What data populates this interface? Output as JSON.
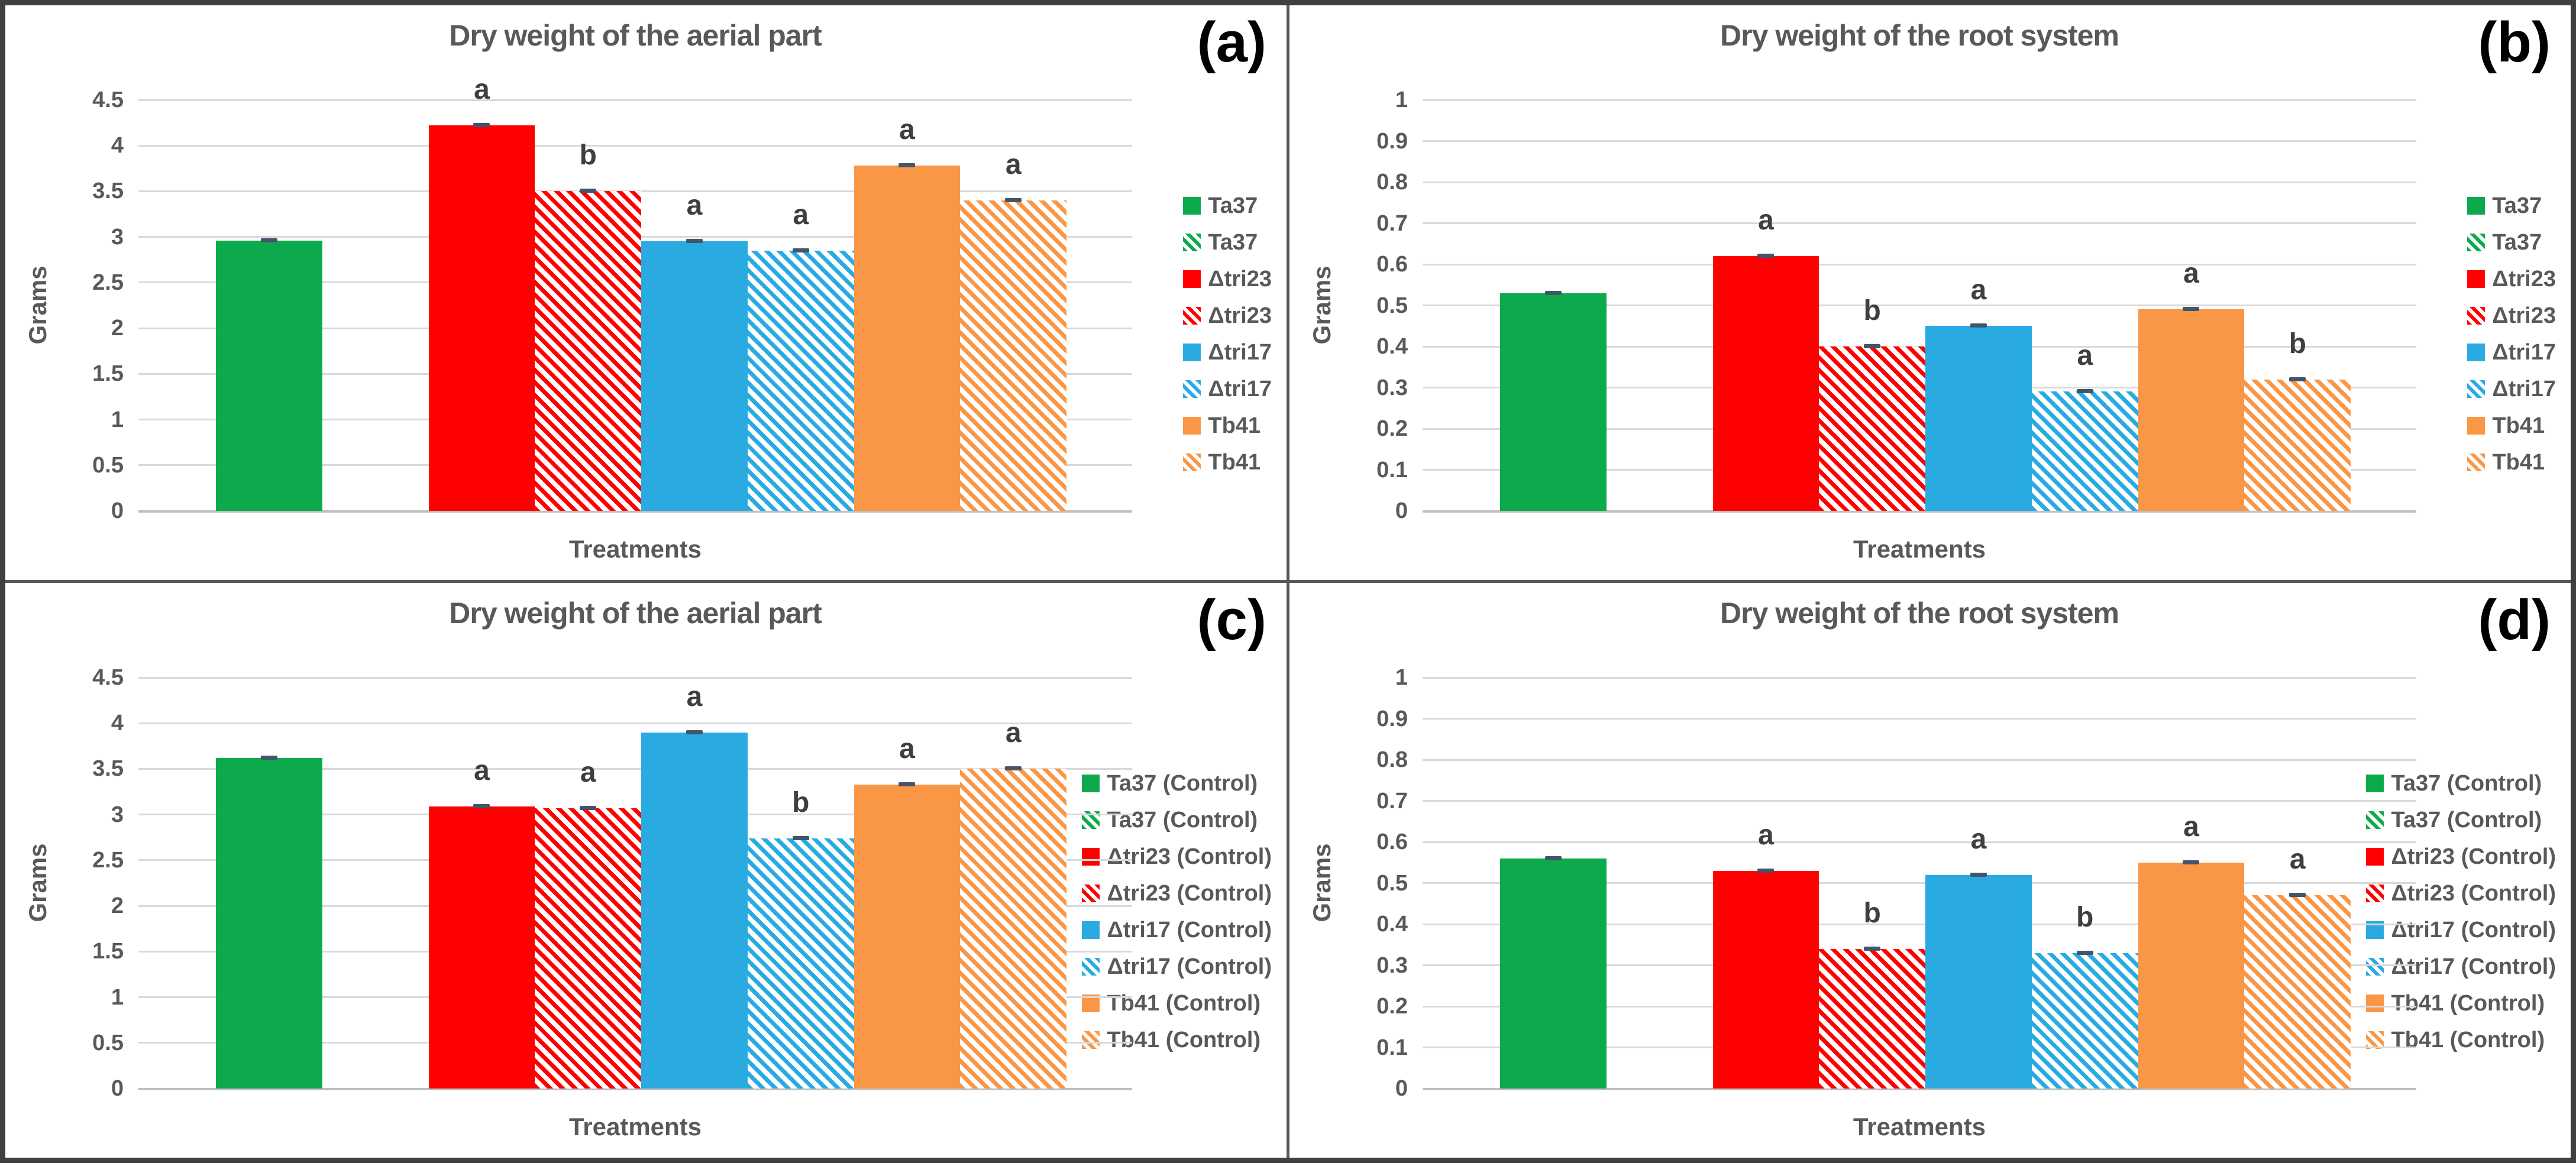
{
  "figure": {
    "background": "#ffffff",
    "border_color": "#3f3f3f",
    "divider_color": "#595959",
    "text_color": "#595959",
    "letter_color": "#3f3f3f",
    "gridline_color": "#d9d9d9",
    "baseline_color": "#bfbfbf",
    "error_bar_color": "#44546a",
    "palette": {
      "green": "#0ca94d",
      "red": "#fe0000",
      "blue": "#29abe2",
      "orange": "#f99746"
    }
  },
  "chart_data": [
    {
      "type": "bar",
      "panel_label": "(a)",
      "title": "Dry weight of the aerial part",
      "ylabel": "Grams",
      "xlabel": "Treatments",
      "ylim": [
        0,
        4.5
      ],
      "ytick_step": 0.5,
      "grid": true,
      "legend_position": "right",
      "legend": [
        {
          "label": "Ta37",
          "color": "green",
          "hatch": false
        },
        {
          "label": "Ta37",
          "color": "green",
          "hatch": true
        },
        {
          "label": "Δtri23",
          "color": "red",
          "hatch": false
        },
        {
          "label": "Δtri23",
          "color": "red",
          "hatch": true
        },
        {
          "label": "Δtri17",
          "color": "blue",
          "hatch": false
        },
        {
          "label": "Δtri17",
          "color": "blue",
          "hatch": true
        },
        {
          "label": "Tb41",
          "color": "orange",
          "hatch": false
        },
        {
          "label": "Tb41",
          "color": "orange",
          "hatch": true
        }
      ],
      "bars": [
        {
          "name": "Ta37",
          "slot": 0,
          "value": 2.96,
          "color": "green",
          "hatch": false,
          "letter": ""
        },
        {
          "name": "Δtri23",
          "slot": 2,
          "value": 4.22,
          "color": "red",
          "hatch": false,
          "letter": "a"
        },
        {
          "name": "Δtri23",
          "slot": 3,
          "value": 3.5,
          "color": "red",
          "hatch": true,
          "letter": "b"
        },
        {
          "name": "Δtri17",
          "slot": 4,
          "value": 2.95,
          "color": "blue",
          "hatch": false,
          "letter": "a"
        },
        {
          "name": "Δtri17",
          "slot": 5,
          "value": 2.85,
          "color": "blue",
          "hatch": true,
          "letter": "a"
        },
        {
          "name": "Tb41",
          "slot": 6,
          "value": 3.78,
          "color": "orange",
          "hatch": false,
          "letter": "a"
        },
        {
          "name": "Tb41",
          "slot": 7,
          "value": 3.4,
          "color": "orange",
          "hatch": true,
          "letter": "a"
        }
      ]
    },
    {
      "type": "bar",
      "panel_label": "(b)",
      "title": "Dry weight of the root system",
      "ylabel": "Grams",
      "xlabel": "Treatments",
      "ylim": [
        0,
        1
      ],
      "ytick_step": 0.1,
      "grid": true,
      "legend_position": "right",
      "legend": [
        {
          "label": "Ta37",
          "color": "green",
          "hatch": false
        },
        {
          "label": "Ta37",
          "color": "green",
          "hatch": true
        },
        {
          "label": "Δtri23",
          "color": "red",
          "hatch": false
        },
        {
          "label": "Δtri23",
          "color": "red",
          "hatch": true
        },
        {
          "label": "Δtri17",
          "color": "blue",
          "hatch": false
        },
        {
          "label": "Δtri17",
          "color": "blue",
          "hatch": true
        },
        {
          "label": "Tb41",
          "color": "orange",
          "hatch": false
        },
        {
          "label": "Tb41",
          "color": "orange",
          "hatch": true
        }
      ],
      "bars": [
        {
          "name": "Ta37",
          "slot": 0,
          "value": 0.53,
          "color": "green",
          "hatch": false,
          "letter": ""
        },
        {
          "name": "Δtri23",
          "slot": 2,
          "value": 0.62,
          "color": "red",
          "hatch": false,
          "letter": "a"
        },
        {
          "name": "Δtri23",
          "slot": 3,
          "value": 0.4,
          "color": "red",
          "hatch": true,
          "letter": "b"
        },
        {
          "name": "Δtri17",
          "slot": 4,
          "value": 0.45,
          "color": "blue",
          "hatch": false,
          "letter": "a"
        },
        {
          "name": "Δtri17",
          "slot": 5,
          "value": 0.29,
          "color": "blue",
          "hatch": true,
          "letter": "a"
        },
        {
          "name": "Tb41",
          "slot": 6,
          "value": 0.49,
          "color": "orange",
          "hatch": false,
          "letter": "a"
        },
        {
          "name": "Tb41",
          "slot": 7,
          "value": 0.32,
          "color": "orange",
          "hatch": true,
          "letter": "b"
        }
      ]
    },
    {
      "type": "bar",
      "panel_label": "(c)",
      "title": "Dry weight of the aerial part",
      "ylabel": "Grams",
      "xlabel": "Treatments",
      "ylim": [
        0,
        4.5
      ],
      "ytick_step": 0.5,
      "grid": true,
      "legend_position": "right",
      "legend": [
        {
          "label": "Ta37 (Control)",
          "color": "green",
          "hatch": false
        },
        {
          "label": "Ta37 (Control)",
          "color": "green",
          "hatch": true
        },
        {
          "label": "Δtri23 (Control)",
          "color": "red",
          "hatch": false
        },
        {
          "label": "Δtri23 (Control)",
          "color": "red",
          "hatch": true
        },
        {
          "label": "Δtri17 (Control)",
          "color": "blue",
          "hatch": false
        },
        {
          "label": "Δtri17 (Control)",
          "color": "blue",
          "hatch": true
        },
        {
          "label": "Tb41 (Control)",
          "color": "orange",
          "hatch": false
        },
        {
          "label": "Tb41 (Control)",
          "color": "orange",
          "hatch": true
        }
      ],
      "bars": [
        {
          "name": "Ta37 (Control)",
          "slot": 0,
          "value": 3.62,
          "color": "green",
          "hatch": false,
          "letter": ""
        },
        {
          "name": "Δtri23 (Control)",
          "slot": 2,
          "value": 3.09,
          "color": "red",
          "hatch": false,
          "letter": "a"
        },
        {
          "name": "Δtri23 (Control)",
          "slot": 3,
          "value": 3.07,
          "color": "red",
          "hatch": true,
          "letter": "a"
        },
        {
          "name": "Δtri17 (Control)",
          "slot": 4,
          "value": 3.9,
          "color": "blue",
          "hatch": false,
          "letter": "a"
        },
        {
          "name": "Δtri17 (Control)",
          "slot": 5,
          "value": 2.74,
          "color": "blue",
          "hatch": true,
          "letter": "b"
        },
        {
          "name": "Tb41 (Control)",
          "slot": 6,
          "value": 3.33,
          "color": "orange",
          "hatch": false,
          "letter": "a"
        },
        {
          "name": "Tb41 (Control)",
          "slot": 7,
          "value": 3.5,
          "color": "orange",
          "hatch": true,
          "letter": "a"
        }
      ]
    },
    {
      "type": "bar",
      "panel_label": "(d)",
      "title": "Dry weight of the root system",
      "ylabel": "Grams",
      "xlabel": "Treatments",
      "ylim": [
        0,
        1
      ],
      "ytick_step": 0.1,
      "grid": true,
      "legend_position": "right",
      "legend": [
        {
          "label": "Ta37 (Control)",
          "color": "green",
          "hatch": false
        },
        {
          "label": "Ta37 (Control)",
          "color": "green",
          "hatch": true
        },
        {
          "label": "Δtri23 (Control)",
          "color": "red",
          "hatch": false
        },
        {
          "label": "Δtri23 (Control)",
          "color": "red",
          "hatch": true
        },
        {
          "label": "Δtri17 (Control)",
          "color": "blue",
          "hatch": false
        },
        {
          "label": "Δtri17 (Control)",
          "color": "blue",
          "hatch": true
        },
        {
          "label": "Tb41 (Control)",
          "color": "orange",
          "hatch": false
        },
        {
          "label": "Tb41 (Control)",
          "color": "orange",
          "hatch": true
        }
      ],
      "bars": [
        {
          "name": "Ta37 (Control)",
          "slot": 0,
          "value": 0.56,
          "color": "green",
          "hatch": false,
          "letter": ""
        },
        {
          "name": "Δtri23 (Control)",
          "slot": 2,
          "value": 0.53,
          "color": "red",
          "hatch": false,
          "letter": "a"
        },
        {
          "name": "Δtri23 (Control)",
          "slot": 3,
          "value": 0.34,
          "color": "red",
          "hatch": true,
          "letter": "b"
        },
        {
          "name": "Δtri17 (Control)",
          "slot": 4,
          "value": 0.52,
          "color": "blue",
          "hatch": false,
          "letter": "a"
        },
        {
          "name": "Δtri17 (Control)",
          "slot": 5,
          "value": 0.33,
          "color": "blue",
          "hatch": true,
          "letter": "b"
        },
        {
          "name": "Tb41 (Control)",
          "slot": 6,
          "value": 0.55,
          "color": "orange",
          "hatch": false,
          "letter": "a"
        },
        {
          "name": "Tb41 (Control)",
          "slot": 7,
          "value": 0.47,
          "color": "orange",
          "hatch": true,
          "letter": "a"
        }
      ]
    }
  ]
}
